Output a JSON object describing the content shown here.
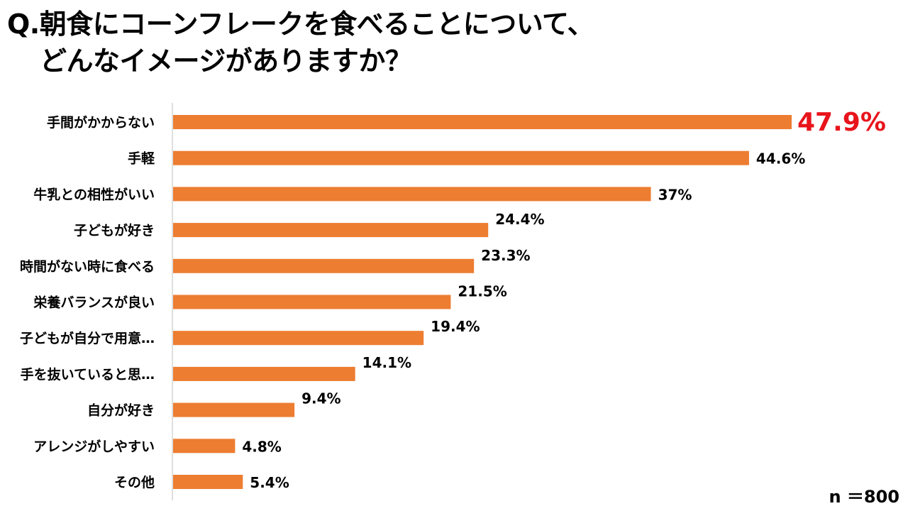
{
  "title": {
    "line1": "Q.朝食にコーンフレークを食べることについて、",
    "line2": "どんなイメージがありますか？"
  },
  "sample_size": "n ＝800",
  "colors": {
    "bar": "#ED7D31",
    "highlight_label": "#E8141C",
    "axis": "#BFBFBF"
  },
  "chart_data": {
    "type": "bar",
    "orientation": "horizontal",
    "title": "Q.朝食にコーンフレークを食べることについて、どんなイメージがありますか？",
    "xlabel": "",
    "ylabel": "",
    "xlim": [
      0,
      50
    ],
    "grid": false,
    "legend": "none",
    "categories": [
      "手間がかからない",
      "手軽",
      "牛乳との相性がいい",
      "子どもが好き",
      "時間がない時に食べる",
      "栄養バランスが良い",
      "子どもが自分で用意…",
      "手を抜いていると思…",
      "自分が好き",
      "アレンジがしやすい",
      "その他"
    ],
    "values": [
      47.9,
      44.6,
      37,
      24.4,
      23.3,
      21.5,
      19.4,
      14.1,
      9.4,
      4.8,
      5.4
    ],
    "value_labels": [
      "47.9%",
      "44.6%",
      "37%",
      "24.4%",
      "23.3%",
      "21.5%",
      "19.4%",
      "14.1%",
      "9.4%",
      "4.8%",
      "5.4%"
    ],
    "highlight_index": 0
  }
}
